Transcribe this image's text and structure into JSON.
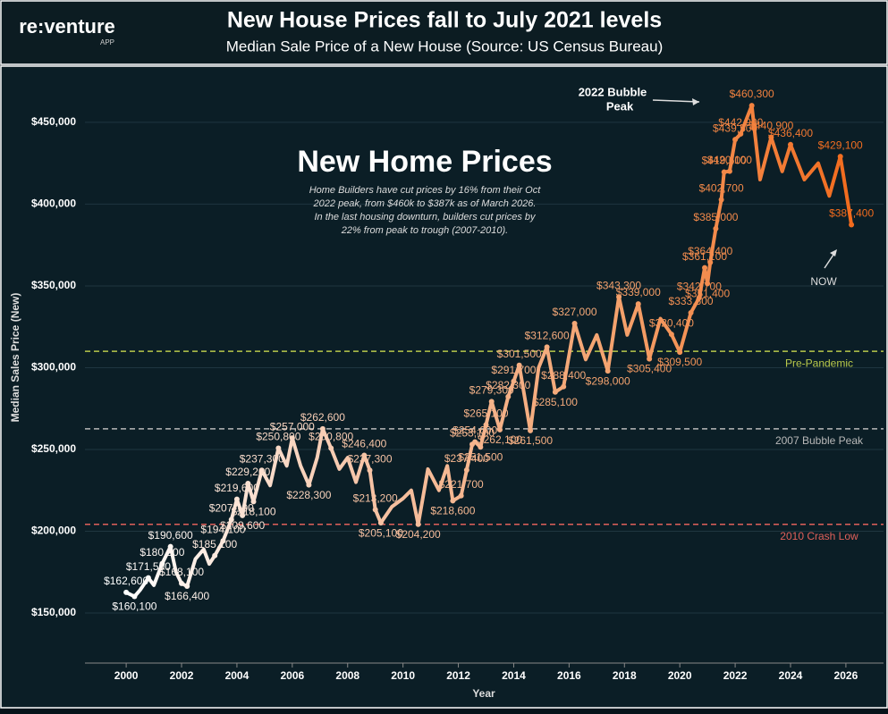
{
  "brand": {
    "name": "re:venture",
    "sub": "APP"
  },
  "chart_data": {
    "type": "line",
    "title": "New House Prices fall to July 2021 levels",
    "subtitle": "Median Sale Price of a New House (Source: US Census Bureau)",
    "x_label": "Year",
    "y_label": "Median Sales Price (New)",
    "annotation_title": "New Home Prices",
    "annotation_lines": [
      "Home Builders have cut prices by 16% from their Oct",
      "2022 peak, from $460k to $387k as of March 2026.",
      "In the last housing downturn, builders cut prices by",
      "22% from peak to trough (2007-2010)."
    ],
    "peak_note": [
      "2022 Bubble",
      "Peak"
    ],
    "now_note": "NOW",
    "xlim": [
      1998.51,
      2027.36
    ],
    "ylim": [
      119400,
      481100
    ],
    "xticks": [
      2000,
      2002,
      2004,
      2006,
      2008,
      2010,
      2012,
      2014,
      2016,
      2018,
      2020,
      2022,
      2024,
      2026
    ],
    "yticks": [
      {
        "value": 150000,
        "label": "$150,000"
      },
      {
        "value": 200000,
        "label": "$200,000"
      },
      {
        "value": 250000,
        "label": "$250,000"
      },
      {
        "value": 300000,
        "label": "$300,000"
      },
      {
        "value": 350000,
        "label": "$350,000"
      },
      {
        "value": 400000,
        "label": "$400,000"
      },
      {
        "value": 450000,
        "label": "$450,000"
      }
    ],
    "grid": true,
    "colors": [
      "#ffffff",
      "#f6c3a5",
      "#f4a36f",
      "#f26b1d"
    ],
    "reference_lines": [
      {
        "value": 310000,
        "label": "Pre-Pandemic",
        "color": "#b9c94b"
      },
      {
        "value": 262600,
        "label": "2007 Bubble Peak",
        "color": "#b8b8b8"
      },
      {
        "value": 204200,
        "label": "2010 Crash Low",
        "color": "#e0605a"
      }
    ],
    "series": [
      {
        "name": "Median Sales Price (New)",
        "x": [
          2000.0,
          2000.3,
          2000.5,
          2000.8,
          2001.0,
          2001.3,
          2001.6,
          2001.8,
          2002.0,
          2002.2,
          2002.5,
          2002.8,
          2003.0,
          2003.2,
          2003.5,
          2003.8,
          2004.0,
          2004.2,
          2004.4,
          2004.6,
          2004.9,
          2005.2,
          2005.5,
          2005.8,
          2006.0,
          2006.3,
          2006.6,
          2006.9,
          2007.1,
          2007.4,
          2007.7,
          2008.0,
          2008.3,
          2008.6,
          2008.8,
          2009.0,
          2009.2,
          2009.6,
          2010.0,
          2010.3,
          2010.55,
          2010.9,
          2011.3,
          2011.6,
          2011.8,
          2012.1,
          2012.3,
          2012.5,
          2012.6,
          2012.8,
          2013.0,
          2013.2,
          2013.5,
          2013.8,
          2014.0,
          2014.2,
          2014.6,
          2014.9,
          2015.2,
          2015.5,
          2015.8,
          2016.2,
          2016.6,
          2017.0,
          2017.4,
          2017.8,
          2018.1,
          2018.5,
          2018.9,
          2019.3,
          2019.7,
          2020.0,
          2020.4,
          2020.7,
          2020.9,
          2021.0,
          2021.1,
          2021.3,
          2021.5,
          2021.6,
          2021.8,
          2022.0,
          2022.2,
          2022.6,
          2022.9,
          2023.3,
          2023.7,
          2024.0,
          2024.5,
          2025.0,
          2025.4,
          2025.8,
          2026.2
        ],
        "values": [
          162600,
          160100,
          164000,
          171500,
          167000,
          180200,
          190600,
          175000,
          168100,
          166400,
          183000,
          189000,
          180000,
          185100,
          194100,
          207100,
          219600,
          209600,
          229200,
          218100,
          237300,
          228000,
          250800,
          240000,
          257000,
          240000,
          228300,
          245000,
          262600,
          250800,
          238000,
          245000,
          230000,
          246400,
          237300,
          213200,
          205100,
          215000,
          220000,
          225000,
          204200,
          238000,
          225000,
          240000,
          218600,
          221700,
          237400,
          253100,
          254600,
          251500,
          265100,
          279300,
          262100,
          282300,
          291700,
          301500,
          261500,
          300000,
          312600,
          285100,
          288400,
          327000,
          305000,
          320000,
          298000,
          343300,
          320000,
          339000,
          305400,
          330000,
          320400,
          309500,
          333600,
          342700,
          361100,
          351400,
          364400,
          385000,
          402700,
          419600,
          420100,
          439500,
          442900,
          460300,
          415000,
          440900,
          420000,
          436400,
          415000,
          425000,
          405000,
          429100,
          387400
        ],
        "value_labels": [
          "$162,600",
          "$160,100",
          null,
          "$171,500",
          null,
          "$180,200",
          "$190,600",
          null,
          "$168,100",
          "$166,400",
          null,
          null,
          null,
          "$185,100",
          "$194,100",
          "$207,100",
          "$219,600",
          "$209,600",
          "$229,200",
          "$218,100",
          "$237,300",
          null,
          "$250,800",
          null,
          "$257,000",
          null,
          "$228,300",
          null,
          "$262,600",
          "$250,800",
          null,
          null,
          null,
          "$246,400",
          "$237,300",
          "$213,200",
          "$205,100",
          null,
          null,
          null,
          "$204,200",
          null,
          null,
          null,
          "$218,600",
          "$221,700",
          "$237,400",
          "$253,100",
          "$254,600",
          "$251,500",
          "$265,100",
          "$279,300",
          "$262,100",
          "$282,300",
          "$291,700",
          "$301,500",
          "$261,500",
          null,
          "$312,600",
          "$285,100",
          "$288,400",
          "$327,000",
          null,
          null,
          "$298,000",
          "$343,300",
          null,
          "$339,000",
          "$305,400",
          null,
          "$320,400",
          "$309,500",
          "$333,600",
          "$342,700",
          "$361,100",
          "$351,400",
          "$364,400",
          "$385,000",
          "$402,700",
          "$419,600",
          "$420,100",
          "$439,500",
          "$442,900",
          "$460,300",
          null,
          "$440,900",
          null,
          "$436,400",
          null,
          null,
          null,
          "$429,100",
          "$387,400"
        ]
      }
    ]
  }
}
